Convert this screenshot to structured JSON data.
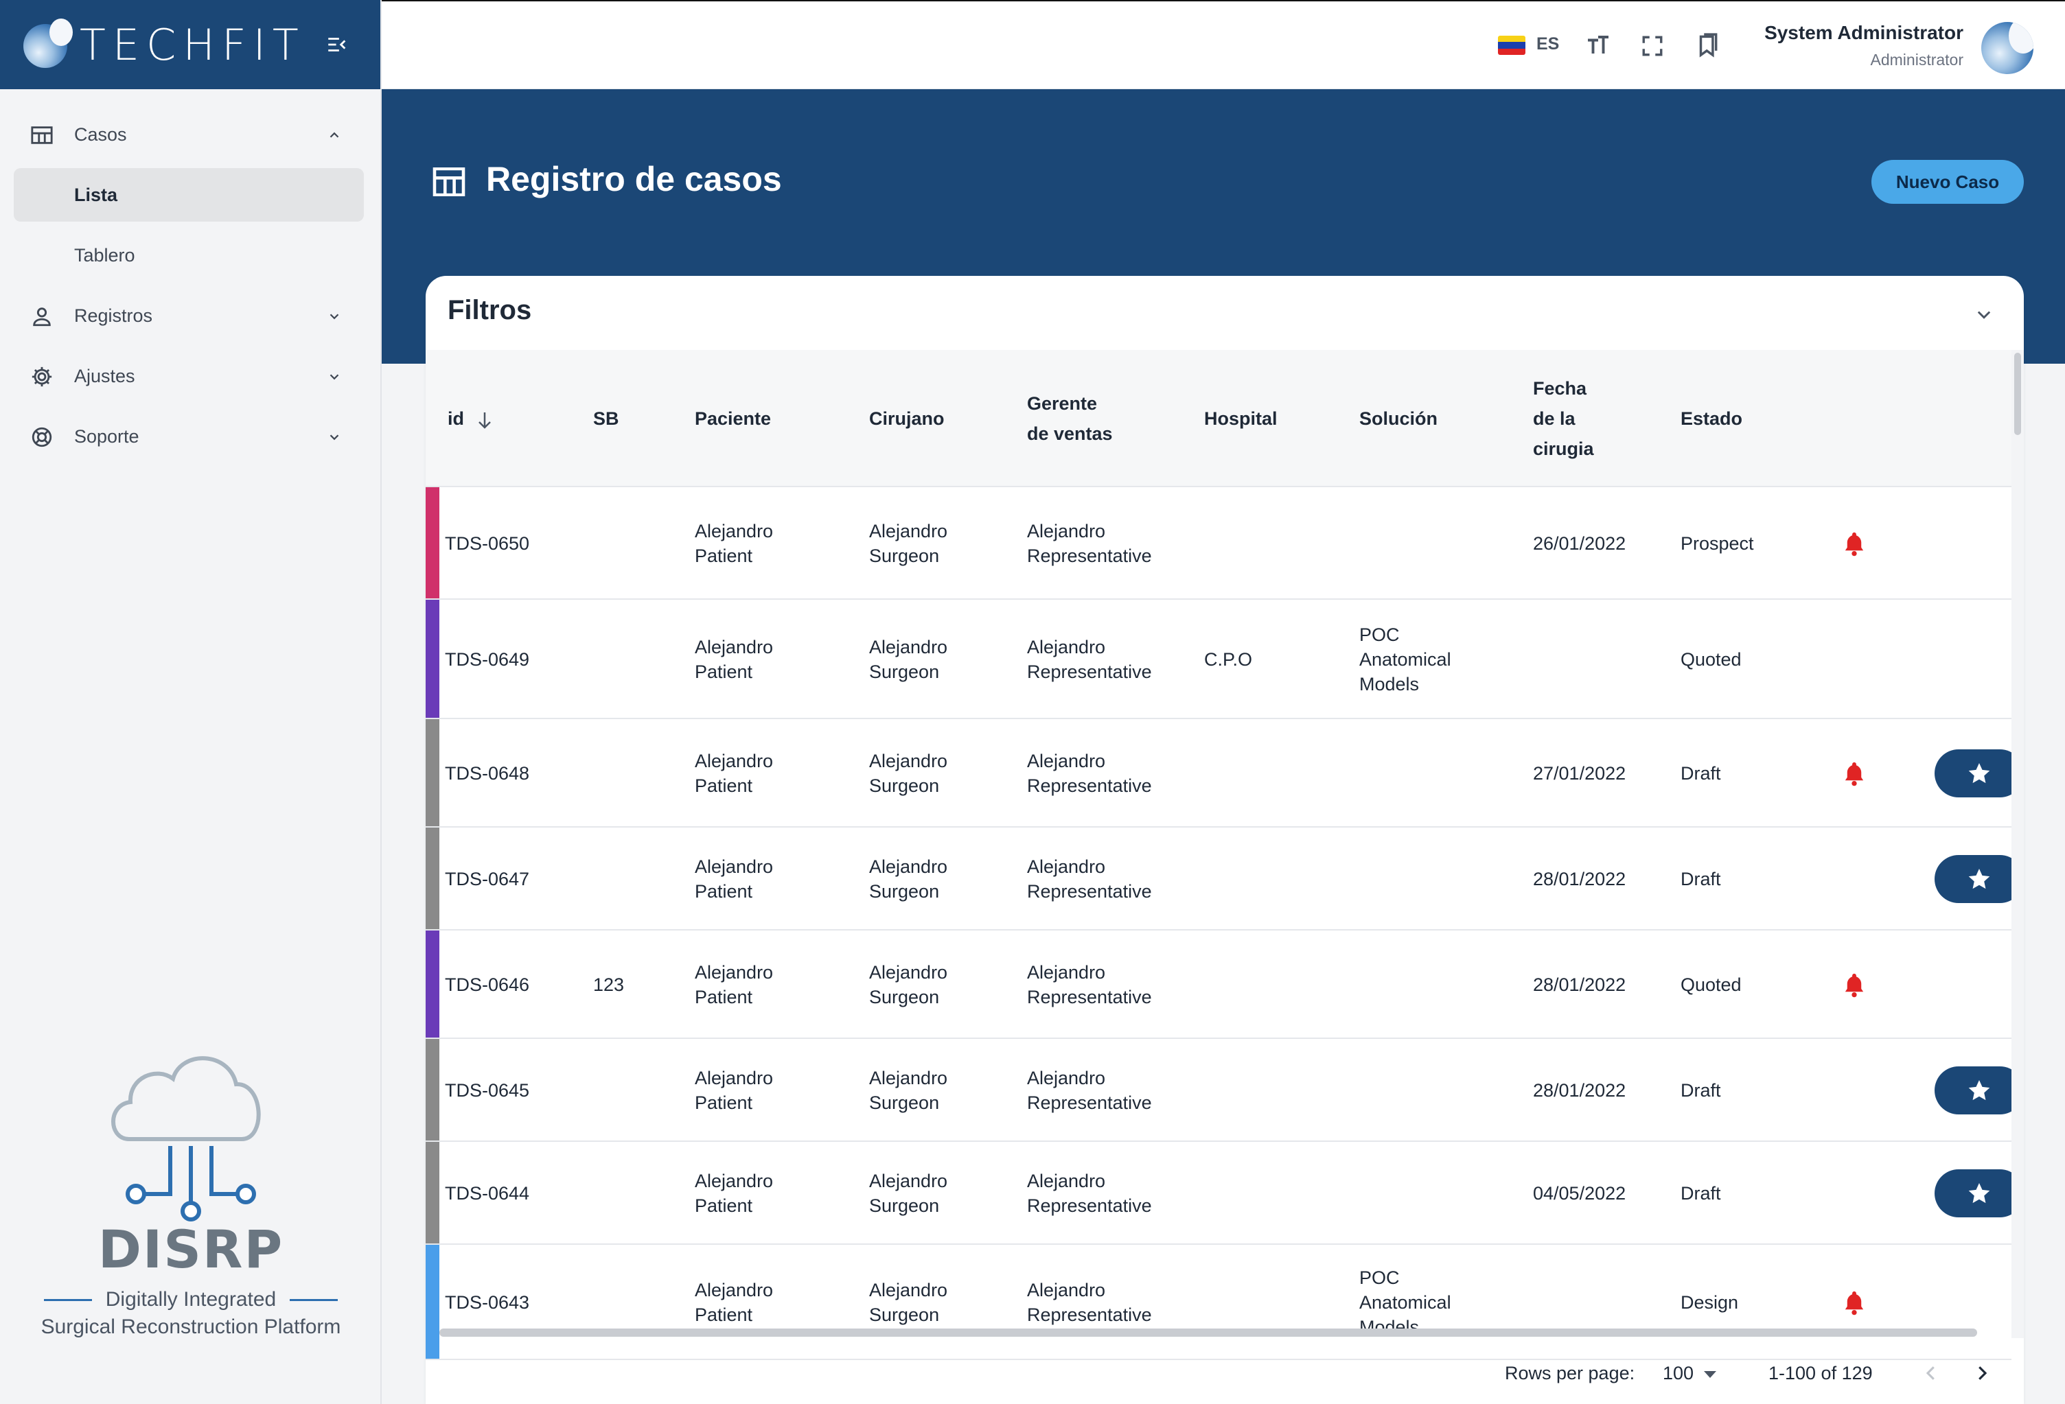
{
  "brand": {
    "name": "TECHFIT"
  },
  "sidebar": {
    "items": [
      {
        "label": "Casos",
        "icon": "table-icon",
        "expanded": true,
        "children": [
          {
            "label": "Lista",
            "active": true
          },
          {
            "label": "Tablero",
            "active": false
          }
        ]
      },
      {
        "label": "Registros",
        "icon": "person-icon",
        "expanded": false
      },
      {
        "label": "Ajustes",
        "icon": "gear-icon",
        "expanded": false
      },
      {
        "label": "Soporte",
        "icon": "lifebuoy-icon",
        "expanded": false
      }
    ],
    "footer": {
      "title": "DISRP",
      "line1": "Digitally Integrated",
      "line2": "Surgical Reconstruction Platform"
    }
  },
  "topbar": {
    "language": "ES",
    "user": {
      "name": "System Administrator",
      "role": "Administrator"
    }
  },
  "page": {
    "title": "Registro de casos",
    "new_button": "Nuevo Caso"
  },
  "filters": {
    "title": "Filtros"
  },
  "table": {
    "headers": {
      "id": "id",
      "sb": "SB",
      "paciente": "Paciente",
      "cirujano": "Cirujano",
      "gerente": "Gerente\nde ventas",
      "hospital": "Hospital",
      "solucion": "Solución",
      "fecha": "Fecha\nde la\ncirugia",
      "estado": "Estado"
    },
    "rows": [
      {
        "id": "TDS-0650",
        "sb": "",
        "paciente": "Alejandro\nPatient",
        "cirujano": "Alejandro\nSurgeon",
        "gerente": "Alejandro\nRepresentative",
        "hospital": "",
        "solucion": "",
        "fecha": "26/01/2022",
        "estado": "Prospect",
        "bell": true,
        "star": false,
        "color": "#d0306a"
      },
      {
        "id": "TDS-0649",
        "sb": "",
        "paciente": "Alejandro\nPatient",
        "cirujano": "Alejandro\nSurgeon",
        "gerente": "Alejandro\nRepresentative",
        "hospital": "C.P.O",
        "solucion": "POC\nAnatomical\nModels",
        "fecha": "",
        "estado": "Quoted",
        "bell": false,
        "star": false,
        "color": "#6a3bb8"
      },
      {
        "id": "TDS-0648",
        "sb": "",
        "paciente": "Alejandro\nPatient",
        "cirujano": "Alejandro\nSurgeon",
        "gerente": "Alejandro\nRepresentative",
        "hospital": "",
        "solucion": "",
        "fecha": "27/01/2022",
        "estado": "Draft",
        "bell": true,
        "star": true,
        "color": "#8a8a8a"
      },
      {
        "id": "TDS-0647",
        "sb": "",
        "paciente": "Alejandro\nPatient",
        "cirujano": "Alejandro\nSurgeon",
        "gerente": "Alejandro\nRepresentative",
        "hospital": "",
        "solucion": "",
        "fecha": "28/01/2022",
        "estado": "Draft",
        "bell": false,
        "star": true,
        "color": "#8a8a8a"
      },
      {
        "id": "TDS-0646",
        "sb": "123",
        "paciente": "Alejandro\nPatient",
        "cirujano": "Alejandro\nSurgeon",
        "gerente": "Alejandro\nRepresentative",
        "hospital": "",
        "solucion": "",
        "fecha": "28/01/2022",
        "estado": "Quoted",
        "bell": true,
        "star": false,
        "color": "#6a3bb8"
      },
      {
        "id": "TDS-0645",
        "sb": "",
        "paciente": "Alejandro\nPatient",
        "cirujano": "Alejandro\nSurgeon",
        "gerente": "Alejandro\nRepresentative",
        "hospital": "",
        "solucion": "",
        "fecha": "28/01/2022",
        "estado": "Draft",
        "bell": false,
        "star": true,
        "color": "#8a8a8a"
      },
      {
        "id": "TDS-0644",
        "sb": "",
        "paciente": "Alejandro\nPatient",
        "cirujano": "Alejandro\nSurgeon",
        "gerente": "Alejandro\nRepresentative",
        "hospital": "",
        "solucion": "",
        "fecha": "04/05/2022",
        "estado": "Draft",
        "bell": false,
        "star": true,
        "color": "#8a8a8a"
      },
      {
        "id": "TDS-0643",
        "sb": "",
        "paciente": "Alejandro\nPatient",
        "cirujano": "Alejandro\nSurgeon",
        "gerente": "Alejandro\nRepresentative",
        "hospital": "",
        "solucion": "POC\nAnatomical\nModels",
        "fecha": "",
        "estado": "Design",
        "bell": true,
        "star": false,
        "color": "#4a9eea"
      }
    ]
  },
  "pagination": {
    "rows_per_page_label": "Rows per page:",
    "rows_per_page": "100",
    "range": "1-100 of 129"
  },
  "colors": {
    "primary": "#1b4776",
    "accent": "#4aa8e8",
    "bell": "#e02424"
  }
}
